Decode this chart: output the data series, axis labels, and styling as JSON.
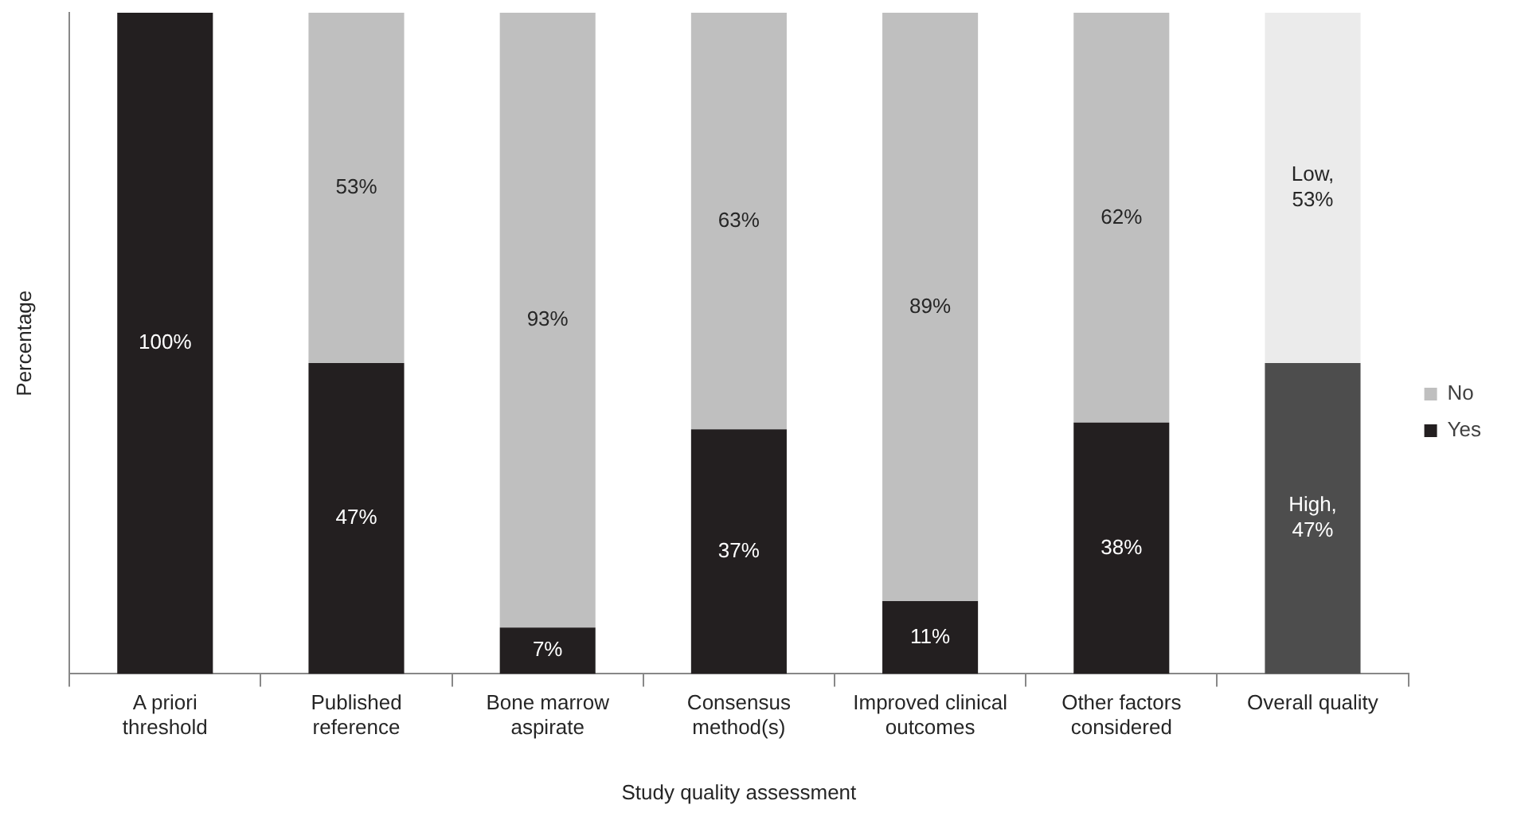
{
  "chart_data": {
    "type": "bar",
    "stacked": true,
    "xlabel": "Study quality assessment",
    "ylabel": "Percentage",
    "ylim": [
      0,
      100
    ],
    "tick_labels": "x",
    "grid": false,
    "legend": "right",
    "categories": [
      "A priori threshold",
      "Published reference",
      "Bone marrow aspirate",
      "Consensus method(s)",
      "Improved clinical outcomes",
      "Other factors considered",
      "Overall quality"
    ],
    "series": [
      {
        "name": "Yes",
        "color": "#231f20",
        "colors": [
          "#231f20",
          "#231f20",
          "#231f20",
          "#231f20",
          "#231f20",
          "#231f20",
          "#4d4d4d"
        ],
        "values": [
          100,
          47,
          7,
          37,
          11,
          38,
          47
        ],
        "value_labels": [
          "100%",
          "47%",
          "7%",
          "37%",
          "11%",
          "38%",
          "High, 47%"
        ]
      },
      {
        "name": "No",
        "color": "#bfbfbf",
        "colors": [
          "#bfbfbf",
          "#bfbfbf",
          "#bfbfbf",
          "#bfbfbf",
          "#bfbfbf",
          "#bfbfbf",
          "#ebebeb"
        ],
        "values": [
          0,
          53,
          93,
          63,
          89,
          62,
          53
        ],
        "value_labels": [
          null,
          "53%",
          "93%",
          "63%",
          "89%",
          "62%",
          "Low, 53%"
        ]
      }
    ]
  }
}
